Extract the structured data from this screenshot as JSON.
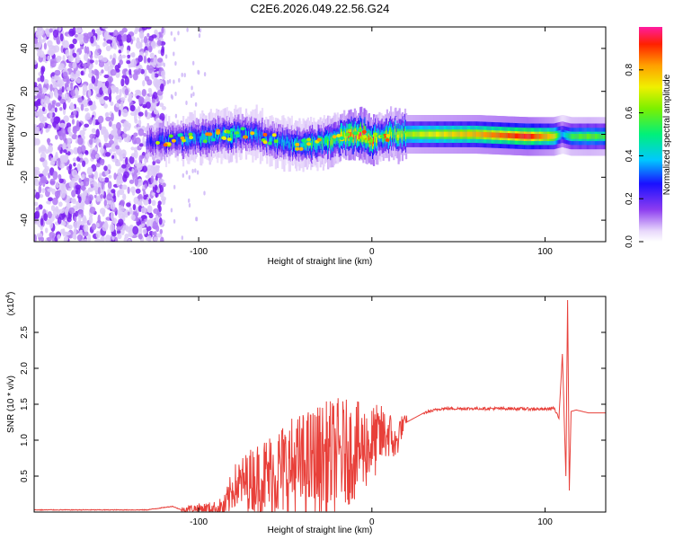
{
  "title": "C2E6.2026.049.22.56.G24",
  "chart_data": [
    {
      "type": "heatmap",
      "title": "C2E6.2026.049.22.56.G24",
      "xlabel": "Height of straight line (km)",
      "ylabel": "Frequency (Hz)",
      "xlim": [
        -195,
        135
      ],
      "ylim": [
        -50,
        50
      ],
      "xticks": [
        -100,
        0,
        100
      ],
      "xtick_labels": [
        "-100",
        "0",
        "100"
      ],
      "yticks": [
        -40,
        -20,
        0,
        20,
        40
      ],
      "ytick_labels": [
        "-40",
        "-20",
        "0",
        "20",
        "40"
      ],
      "noise_region_x": [
        -195,
        -120
      ],
      "ridge": {
        "x": [
          -130,
          -120,
          -110,
          -100,
          -90,
          -80,
          -70,
          -60,
          -50,
          -40,
          -30,
          -20,
          -12,
          -6,
          0,
          4,
          10,
          30,
          60,
          90,
          105,
          110,
          115,
          125,
          135
        ],
        "freq": [
          -4,
          -3,
          -2,
          -2,
          -1,
          0,
          1,
          -2,
          -4,
          -5,
          -4,
          -2,
          0,
          0,
          -3,
          -1,
          0,
          0,
          0,
          -1,
          -1,
          0,
          -1,
          -1,
          -1
        ],
        "amplitude": [
          0.2,
          0.3,
          0.35,
          0.4,
          0.45,
          0.45,
          0.4,
          0.35,
          0.4,
          0.45,
          0.5,
          0.6,
          0.9,
          0.95,
          0.9,
          0.5,
          0.6,
          0.7,
          0.8,
          0.95,
          0.75,
          0.35,
          0.55,
          0.6,
          0.55
        ]
      },
      "colorbar": {
        "label": "Normalized spectral amplitude",
        "range": [
          0,
          1
        ],
        "ticks": [
          0.0,
          0.2,
          0.4,
          0.6,
          0.8
        ],
        "tick_labels": [
          "0.0",
          "0.2",
          "0.4",
          "0.6",
          "0.8"
        ]
      }
    },
    {
      "type": "line",
      "xlabel": "Height of straight line (km)",
      "ylabel": "SNR (10 * v/v)",
      "y_multiplier": "(x10",
      "y_multiplier_exponent": "4",
      "y_multiplier_close": ")",
      "xlim": [
        -195,
        135
      ],
      "ylim": [
        0,
        3.0
      ],
      "xticks": [
        -100,
        0,
        100
      ],
      "xtick_labels": [
        "-100",
        "0",
        "100"
      ],
      "yticks": [
        0.5,
        1.0,
        1.5,
        2.0,
        2.5
      ],
      "ytick_labels": [
        "0.5",
        "1.0",
        "1.5",
        "2.0",
        "2.5"
      ],
      "color": "#e8403a",
      "series": [
        {
          "name": "SNR",
          "x": [
            -195,
            -130,
            -115,
            -110,
            -105,
            -85,
            -80,
            -70,
            -60,
            -50,
            -40,
            -30,
            -20,
            -10,
            0,
            5,
            10,
            14,
            16,
            20,
            30,
            40,
            60,
            80,
            100,
            105,
            108,
            110,
            112,
            113,
            114,
            115,
            118,
            125,
            135
          ],
          "y": [
            0.03,
            0.03,
            0.08,
            0.03,
            0.05,
            0.05,
            0.35,
            0.45,
            0.5,
            0.6,
            0.65,
            0.72,
            0.8,
            0.85,
            0.95,
            1.05,
            1.1,
            0.9,
            1.15,
            1.25,
            1.38,
            1.44,
            1.44,
            1.44,
            1.43,
            1.45,
            1.3,
            2.2,
            0.5,
            2.95,
            0.3,
            1.4,
            1.42,
            1.38,
            1.38
          ],
          "noise_envelope": {
            "x": [
              -110,
              -90,
              -80,
              -70,
              -60,
              -50,
              -40,
              -30,
              -20,
              -10,
              0,
              10,
              20
            ],
            "amplitude": [
              0.04,
              0.1,
              0.3,
              0.45,
              0.6,
              0.7,
              0.75,
              0.8,
              0.8,
              0.7,
              0.55,
              0.35,
              0.1
            ]
          }
        }
      ]
    }
  ]
}
